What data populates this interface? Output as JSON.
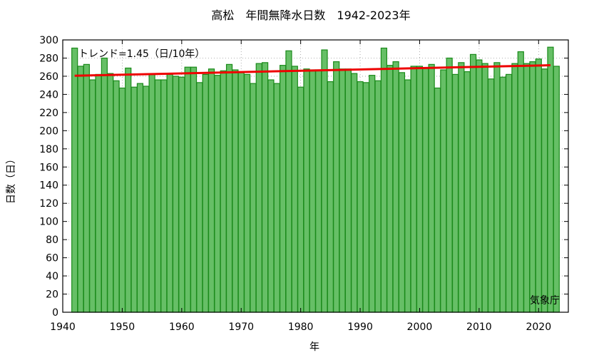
{
  "chart_data": {
    "type": "bar",
    "title": "高松　年間無降水日数　1942-2023年",
    "xlabel": "年",
    "ylabel": "日数（日）",
    "xlim": [
      1940,
      2025
    ],
    "ylim": [
      0,
      300
    ],
    "x_ticks": [
      1940,
      1950,
      1960,
      1970,
      1980,
      1990,
      2000,
      2010,
      2020
    ],
    "y_ticks": [
      0,
      20,
      40,
      60,
      80,
      100,
      120,
      140,
      160,
      180,
      200,
      220,
      240,
      260,
      280,
      300
    ],
    "grid": true,
    "series": [
      {
        "x": [
          1942,
          1943,
          1944,
          1945,
          1946,
          1947,
          1948,
          1949,
          1950,
          1951,
          1952,
          1953,
          1954,
          1955,
          1956,
          1957,
          1958,
          1959,
          1960,
          1961,
          1962,
          1963,
          1964,
          1965,
          1966,
          1967,
          1968,
          1969,
          1970,
          1971,
          1972,
          1973,
          1974,
          1975,
          1976,
          1977,
          1978,
          1979,
          1980,
          1981,
          1982,
          1983,
          1984,
          1985,
          1986,
          1987,
          1988,
          1989,
          1990,
          1991,
          1992,
          1993,
          1994,
          1995,
          1996,
          1997,
          1998,
          1999,
          2000,
          2001,
          2002,
          2003,
          2004,
          2005,
          2006,
          2007,
          2008,
          2009,
          2010,
          2011,
          2012,
          2013,
          2014,
          2015,
          2016,
          2017,
          2018,
          2019,
          2020,
          2021,
          2022,
          2023
        ],
        "values": [
          291,
          271,
          273,
          256,
          262,
          280,
          263,
          255,
          247,
          269,
          248,
          252,
          249,
          262,
          256,
          256,
          262,
          260,
          259,
          270,
          270,
          253,
          262,
          268,
          261,
          266,
          273,
          267,
          265,
          262,
          252,
          274,
          275,
          256,
          252,
          272,
          288,
          271,
          248,
          268,
          267,
          267,
          289,
          254,
          276,
          268,
          268,
          263,
          254,
          253,
          261,
          255,
          291,
          272,
          276,
          264,
          256,
          271,
          271,
          269,
          273,
          247,
          267,
          280,
          262,
          275,
          265,
          284,
          278,
          274,
          257,
          275,
          259,
          262,
          274,
          287,
          274,
          276,
          279,
          268,
          292,
          271
        ]
      }
    ],
    "trend": {
      "label": "トレンド=1.45（日/10年）",
      "x": [
        1942,
        2022
      ],
      "y": [
        260.5,
        272.1
      ]
    },
    "watermark": "気象庁"
  }
}
